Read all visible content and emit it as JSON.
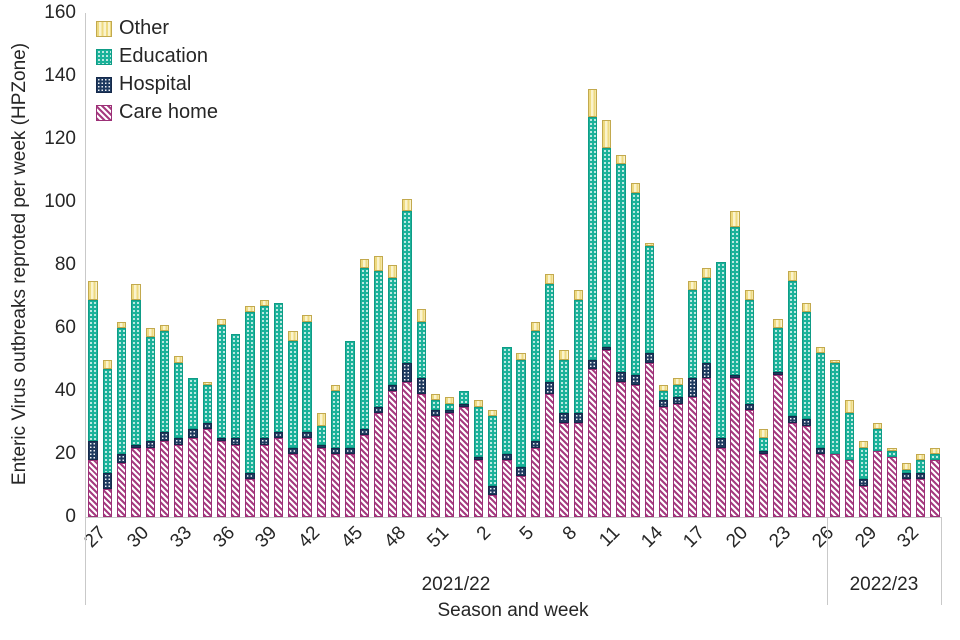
{
  "chart_data": {
    "type": "bar",
    "stacked": true,
    "ylabel": "Enteric Virus outbreaks reproted per week (HPZone)",
    "xlabel": "Season and week",
    "ylim": [
      0,
      160
    ],
    "y_ticks": [
      0,
      20,
      40,
      60,
      80,
      100,
      120,
      140,
      160
    ],
    "grid": false,
    "legend_position": "top-left-inside",
    "legend_order": [
      "Other",
      "Education",
      "Hospital",
      "Care home"
    ],
    "tick_label_every": 3,
    "categories": [
      27,
      28,
      29,
      30,
      31,
      32,
      33,
      34,
      35,
      36,
      37,
      38,
      39,
      40,
      41,
      42,
      43,
      44,
      45,
      46,
      47,
      48,
      49,
      50,
      51,
      52,
      1,
      2,
      3,
      4,
      5,
      6,
      7,
      8,
      9,
      10,
      11,
      12,
      13,
      14,
      15,
      16,
      17,
      18,
      19,
      20,
      21,
      22,
      23,
      24,
      25,
      26,
      27,
      28,
      29,
      30,
      31,
      32,
      33,
      34
    ],
    "season_groups": [
      {
        "label": "2021/22",
        "from_index": 0,
        "to_index": 51
      },
      {
        "label": "2022/23",
        "from_index": 52,
        "to_index": 59
      }
    ],
    "series": [
      {
        "name": "Care home",
        "color": "#a63c80",
        "pattern": "diagonal-stripes",
        "values": [
          18,
          9,
          17,
          22,
          22,
          24,
          23,
          25,
          28,
          24,
          23,
          12,
          23,
          25,
          20,
          25,
          22,
          20,
          20,
          26,
          33,
          40,
          43,
          39,
          32,
          33,
          35,
          18,
          7,
          18,
          13,
          22,
          39,
          30,
          30,
          47,
          53,
          43,
          42,
          49,
          35,
          36,
          38,
          44,
          22,
          44,
          34,
          20,
          45,
          30,
          29,
          20,
          20,
          18,
          10,
          21,
          19,
          12,
          12,
          18
        ]
      },
      {
        "name": "Hospital",
        "color": "#1e3a5f",
        "pattern": "dots",
        "values": [
          6,
          5,
          3,
          1,
          2,
          3,
          2,
          3,
          2,
          1,
          2,
          2,
          2,
          2,
          2,
          2,
          1,
          2,
          2,
          2,
          2,
          2,
          6,
          5,
          2,
          1,
          1,
          1,
          3,
          2,
          3,
          2,
          4,
          3,
          3,
          3,
          1,
          3,
          3,
          3,
          2,
          2,
          6,
          5,
          3,
          1,
          2,
          1,
          1,
          2,
          2,
          2,
          0,
          0,
          2,
          0,
          0,
          2,
          2,
          0
        ]
      },
      {
        "name": "Education",
        "color": "#1bb29a",
        "pattern": "dots",
        "values": [
          45,
          33,
          40,
          46,
          33,
          32,
          24,
          16,
          12,
          36,
          33,
          51,
          42,
          41,
          34,
          35,
          6,
          18,
          34,
          51,
          43,
          34,
          48,
          18,
          3,
          2,
          4,
          16,
          22,
          34,
          34,
          35,
          31,
          17,
          36,
          77,
          63,
          66,
          58,
          34,
          3,
          4,
          28,
          27,
          56,
          47,
          33,
          4,
          14,
          43,
          34,
          30,
          29,
          15,
          10,
          7,
          2,
          1,
          4,
          2
        ]
      },
      {
        "name": "Other",
        "color": "#eeda80",
        "pattern": "vertical-stripes",
        "values": [
          6,
          3,
          2,
          5,
          3,
          2,
          2,
          0,
          1,
          2,
          0,
          2,
          2,
          0,
          3,
          2,
          4,
          2,
          0,
          3,
          5,
          4,
          4,
          4,
          2,
          2,
          0,
          2,
          2,
          0,
          2,
          3,
          3,
          3,
          3,
          9,
          9,
          3,
          3,
          1,
          2,
          2,
          3,
          3,
          0,
          5,
          3,
          3,
          3,
          3,
          3,
          2,
          1,
          4,
          2,
          2,
          1,
          2,
          2,
          2
        ]
      }
    ]
  }
}
